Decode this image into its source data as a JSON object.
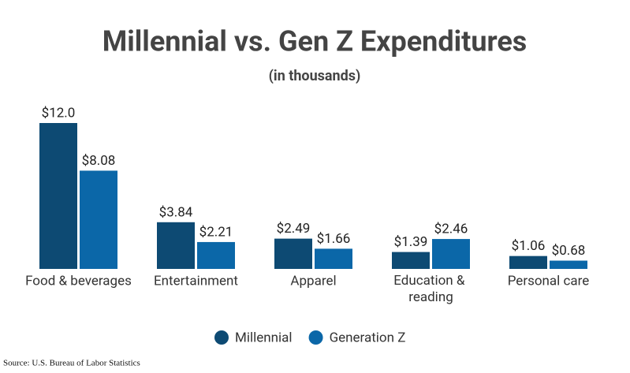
{
  "chart_data": {
    "type": "bar",
    "title": "Millennial vs. Gen Z Expenditures",
    "subtitle": "(in thousands)",
    "categories": [
      "Food & beverages",
      "Entertainment",
      "Apparel",
      "Education & reading",
      "Personal care"
    ],
    "series": [
      {
        "name": "Millennial",
        "color": "#0d4a73",
        "values": [
          12.0,
          3.84,
          2.49,
          1.39,
          1.06
        ],
        "value_labels": [
          "$12.0",
          "$3.84",
          "$2.49",
          "$1.39",
          "$1.06"
        ]
      },
      {
        "name": "Generation Z",
        "color": "#0b67a8",
        "values": [
          8.08,
          2.21,
          1.66,
          2.46,
          0.68
        ],
        "value_labels": [
          "$8.08",
          "$2.21",
          "$1.66",
          "$2.46",
          "$0.68"
        ]
      }
    ],
    "legend": "bottom",
    "source": "Source: U.S. Bureau of Labor Statistics"
  }
}
